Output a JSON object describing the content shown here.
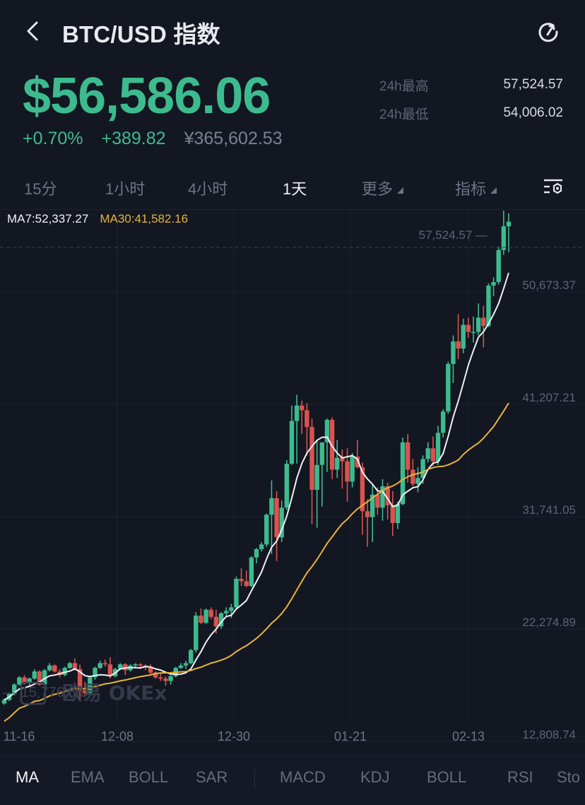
{
  "header": {
    "title": "BTC/USD 指数",
    "back_icon": "chevron-left-icon",
    "share_icon": "share-icon"
  },
  "ticker": {
    "last_price": "$56,586.06",
    "change_pct": "+0.70%",
    "change_abs": "+389.82",
    "cny_price": "¥365,602.53",
    "high_label": "24h最高",
    "high_value": "57,524.57",
    "low_label": "24h最低",
    "low_value": "54,006.02"
  },
  "intervals": {
    "items": [
      {
        "label": "15分",
        "active": false
      },
      {
        "label": "1小时",
        "active": false
      },
      {
        "label": "4小时",
        "active": false
      },
      {
        "label": "1天",
        "active": true
      },
      {
        "label": "更多",
        "active": false,
        "dropdown": true
      },
      {
        "label": "指标",
        "active": false,
        "dropdown": true
      }
    ],
    "settings_icon": "chart-settings-icon"
  },
  "legend": {
    "ma7": "MA7:52,337.27",
    "ma30": "MA30:41,582.16"
  },
  "colors": {
    "background": "#131722",
    "up": "#3dbb8e",
    "down": "#d9534f",
    "ma7": "#f0f1f4",
    "ma30": "#e6b43c",
    "grid": "#1e2231",
    "axis_text": "#5f6375"
  },
  "watermark": {
    "text": "欧易 OKEx"
  },
  "chart_data": {
    "type": "candlestick",
    "title": "BTC/USD 指数 1天",
    "y_ticks": [
      "50,673.37",
      "41,207.21",
      "31,741.05",
      "22,274.89",
      "12,808.74"
    ],
    "x_ticks": [
      "11-16",
      "12-08",
      "12-30",
      "01-21",
      "02-13"
    ],
    "high_marker": "57,524.57",
    "low_marker": "15,776.88",
    "ylim": [
      10000,
      60000
    ],
    "series": [
      {
        "name": "MA7",
        "color": "#f0f1f4",
        "last": 52337.27
      },
      {
        "name": "MA30",
        "color": "#e6b43c",
        "last": 41582.16
      }
    ],
    "candles": [
      [
        16000,
        16400,
        15900,
        16300
      ],
      [
        16300,
        16900,
        16200,
        16800
      ],
      [
        16800,
        17700,
        16700,
        17600
      ],
      [
        17600,
        18300,
        17500,
        18200
      ],
      [
        18200,
        18400,
        17600,
        17700
      ],
      [
        17700,
        18200,
        17500,
        18100
      ],
      [
        18100,
        18900,
        18000,
        18700
      ],
      [
        18700,
        18800,
        17500,
        17600
      ],
      [
        17600,
        18900,
        17500,
        18800
      ],
      [
        18800,
        19400,
        18700,
        19200
      ],
      [
        19200,
        19300,
        18600,
        18700
      ],
      [
        18700,
        18900,
        18200,
        18400
      ],
      [
        18400,
        19100,
        18300,
        19000
      ],
      [
        19000,
        19500,
        18900,
        19400
      ],
      [
        19400,
        19800,
        18800,
        18900
      ],
      [
        18900,
        19300,
        16200,
        17100
      ],
      [
        17100,
        17800,
        16700,
        16900
      ],
      [
        16900,
        18300,
        16800,
        18200
      ],
      [
        18200,
        19100,
        18000,
        19000
      ],
      [
        19000,
        19600,
        18900,
        19400
      ],
      [
        19400,
        19700,
        19100,
        19300
      ],
      [
        19300,
        19900,
        18100,
        18300
      ],
      [
        18300,
        19000,
        18200,
        18900
      ],
      [
        18900,
        19400,
        18800,
        19300
      ],
      [
        19300,
        19400,
        18400,
        18800
      ],
      [
        18800,
        19300,
        18700,
        19200
      ],
      [
        19200,
        19400,
        19000,
        19300
      ],
      [
        19300,
        19400,
        18900,
        19200
      ],
      [
        19200,
        19300,
        18800,
        19100
      ],
      [
        19100,
        19300,
        18400,
        18600
      ],
      [
        18600,
        18700,
        18100,
        18200
      ],
      [
        18200,
        18500,
        17900,
        18100
      ],
      [
        18100,
        18300,
        17500,
        17900
      ],
      [
        17900,
        18400,
        17600,
        18300
      ],
      [
        18300,
        19100,
        18200,
        19000
      ],
      [
        19000,
        19400,
        18900,
        19200
      ],
      [
        19200,
        19600,
        18900,
        19400
      ],
      [
        19400,
        20600,
        19300,
        20500
      ],
      [
        20500,
        23700,
        20300,
        23400
      ],
      [
        23400,
        24000,
        22700,
        22800
      ],
      [
        22800,
        24000,
        22700,
        23900
      ],
      [
        23900,
        24100,
        23100,
        23300
      ],
      [
        23300,
        23900,
        21900,
        22500
      ],
      [
        22500,
        23700,
        22300,
        23600
      ],
      [
        23600,
        24100,
        23400,
        23800
      ],
      [
        23800,
        24400,
        23200,
        24100
      ],
      [
        24100,
        26700,
        24000,
        26500
      ],
      [
        26500,
        27400,
        25900,
        26300
      ],
      [
        26300,
        27200,
        25800,
        25900
      ],
      [
        25900,
        28400,
        25800,
        28300
      ],
      [
        28300,
        29100,
        27800,
        29000
      ],
      [
        29000,
        29600,
        28800,
        29400
      ],
      [
        29400,
        32000,
        29200,
        31900
      ],
      [
        31900,
        34800,
        28600,
        33300
      ],
      [
        33300,
        33900,
        28000,
        30000
      ],
      [
        30000,
        33100,
        29600,
        32500
      ],
      [
        32500,
        36500,
        32300,
        36200
      ],
      [
        36200,
        41100,
        36100,
        39800
      ],
      [
        39800,
        42000,
        36200,
        41100
      ],
      [
        41100,
        41500,
        38700,
        40700
      ],
      [
        40700,
        41300,
        36900,
        39300
      ],
      [
        39300,
        40000,
        31100,
        34000
      ],
      [
        34000,
        38200,
        30800,
        36100
      ],
      [
        36100,
        37700,
        32600,
        38000
      ],
      [
        38000,
        40000,
        35500,
        39900
      ],
      [
        39900,
        40100,
        34900,
        35700
      ],
      [
        35700,
        38200,
        35000,
        36700
      ],
      [
        36700,
        37400,
        34100,
        36400
      ],
      [
        36400,
        37500,
        33000,
        34700
      ],
      [
        34700,
        37100,
        34200,
        36800
      ],
      [
        36800,
        38200,
        35800,
        35900
      ],
      [
        35900,
        36300,
        30200,
        32200
      ],
      [
        32200,
        33200,
        29200,
        31700
      ],
      [
        31700,
        34500,
        29600,
        33600
      ],
      [
        33600,
        34200,
        31900,
        32500
      ],
      [
        32500,
        34900,
        31400,
        34300
      ],
      [
        34300,
        34600,
        31500,
        32700
      ],
      [
        32700,
        33900,
        30100,
        31200
      ],
      [
        31200,
        33000,
        30700,
        32800
      ],
      [
        32800,
        38400,
        32700,
        38000
      ],
      [
        38000,
        38700,
        34600,
        35700
      ],
      [
        35700,
        36600,
        34300,
        34500
      ],
      [
        34500,
        35900,
        33800,
        35000
      ],
      [
        35000,
        36900,
        34500,
        36600
      ],
      [
        36600,
        38000,
        36300,
        37500
      ],
      [
        37500,
        38500,
        36000,
        36400
      ],
      [
        36400,
        39400,
        36100,
        38800
      ],
      [
        38800,
        40800,
        38400,
        40600
      ],
      [
        40600,
        44800,
        40400,
        44600
      ],
      [
        44600,
        47000,
        43000,
        46500
      ],
      [
        46500,
        48800,
        45000,
        45900
      ],
      [
        45900,
        48400,
        45500,
        47900
      ],
      [
        47900,
        48500,
        46800,
        47300
      ],
      [
        47300,
        48600,
        46400,
        47300
      ],
      [
        47300,
        49700,
        47000,
        48500
      ],
      [
        48500,
        49500,
        46000,
        47800
      ],
      [
        47800,
        51400,
        47700,
        51200
      ],
      [
        51200,
        51900,
        50300,
        51500
      ],
      [
        51500,
        54500,
        51300,
        54200
      ],
      [
        54200,
        57524,
        53800,
        56200
      ],
      [
        56200,
        57300,
        54006,
        56586
      ]
    ],
    "ma7": [],
    "ma30": []
  },
  "indicators": {
    "main": [
      {
        "label": "MA",
        "active": true
      },
      {
        "label": "EMA",
        "active": false
      },
      {
        "label": "BOLL",
        "active": false
      },
      {
        "label": "SAR",
        "active": false
      }
    ],
    "sub": [
      {
        "label": "MACD",
        "active": false
      },
      {
        "label": "KDJ",
        "active": false
      },
      {
        "label": "BOLL",
        "active": false
      },
      {
        "label": "RSI",
        "active": false
      },
      {
        "label": "Sto",
        "active": false
      }
    ]
  }
}
